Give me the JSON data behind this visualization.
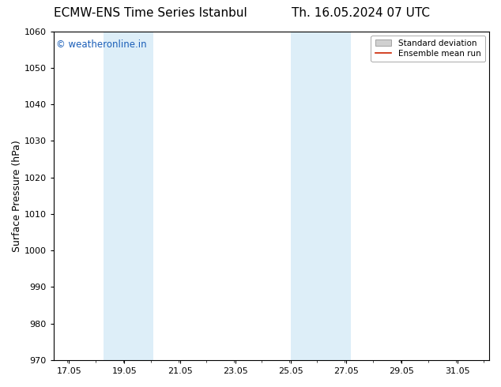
{
  "title_left": "ECMW-ENS Time Series Istanbul",
  "title_right": "Th. 16.05.2024 07 UTC",
  "ylabel": "Surface Pressure (hPa)",
  "ylim": [
    970,
    1060
  ],
  "yticks": [
    970,
    980,
    990,
    1000,
    1010,
    1020,
    1030,
    1040,
    1050,
    1060
  ],
  "xlim": [
    16.5,
    32.2
  ],
  "xtick_positions": [
    17.05,
    19.05,
    21.05,
    23.05,
    25.05,
    27.05,
    29.05,
    31.05
  ],
  "xtick_labels": [
    "17.05",
    "19.05",
    "21.05",
    "23.05",
    "25.05",
    "27.05",
    "29.05",
    "31.05"
  ],
  "shaded_bands": [
    {
      "x_start": 18.3,
      "x_end": 19.3
    },
    {
      "x_start": 19.3,
      "x_end": 20.1
    },
    {
      "x_start": 25.05,
      "x_end": 25.7
    },
    {
      "x_start": 25.7,
      "x_end": 27.2
    }
  ],
  "shade_color": "#ddeef8",
  "watermark_text": "© weatheronline.in",
  "watermark_color": "#1a5eb8",
  "legend_std_color": "#d0d0d0",
  "legend_mean_color": "#cc2200",
  "background_color": "#ffffff",
  "axes_bg_color": "#ffffff",
  "title_fontsize": 11,
  "tick_fontsize": 8,
  "ylabel_fontsize": 9
}
